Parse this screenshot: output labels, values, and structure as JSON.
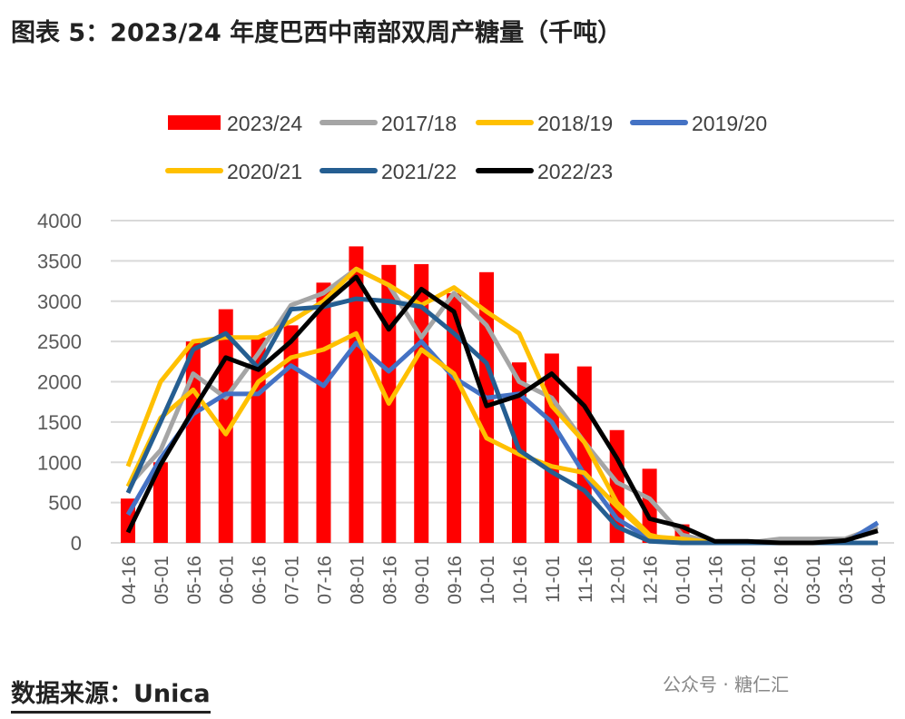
{
  "title": "图表 5：2023/24 年度巴西中南部双周产糖量（千吨）",
  "source": "数据来源：Unica",
  "watermark": "公众号 · 糖仁汇",
  "chart_data": {
    "type": "bar+line",
    "title": "图表 5：2023/24 年度巴西中南部双周产糖量（千吨）",
    "xlabel": "",
    "ylabel": "",
    "ylim": [
      0,
      4000
    ],
    "yticks": [
      0,
      500,
      1000,
      1500,
      2000,
      2500,
      3000,
      3500,
      4000
    ],
    "grid": true,
    "legend": "top",
    "categories": [
      "04-16",
      "05-01",
      "05-16",
      "06-01",
      "06-16",
      "07-01",
      "07-16",
      "08-01",
      "08-16",
      "09-01",
      "09-16",
      "10-01",
      "10-16",
      "11-01",
      "11-16",
      "12-01",
      "12-16",
      "01-01",
      "01-16",
      "02-01",
      "02-16",
      "03-01",
      "03-16",
      "04-01"
    ],
    "series": [
      {
        "name": "2023/24",
        "type": "bar",
        "color": "#ff0000",
        "values": [
          550,
          1000,
          2500,
          2900,
          2550,
          2700,
          3230,
          3680,
          3450,
          3460,
          3100,
          3360,
          2240,
          2350,
          2190,
          1400,
          920,
          230,
          null,
          null,
          null,
          null,
          null,
          null
        ]
      },
      {
        "name": "2017/18",
        "type": "line",
        "color": "#a5a5a5",
        "values": [
          700,
          1150,
          2100,
          1800,
          2350,
          2950,
          3100,
          3400,
          3200,
          2550,
          3100,
          2700,
          2000,
          1800,
          1250,
          750,
          550,
          100,
          0,
          0,
          50,
          50,
          50,
          200
        ]
      },
      {
        "name": "2018/19",
        "type": "line",
        "color": "#ffc000",
        "values": [
          950,
          2000,
          2500,
          2550,
          2550,
          2750,
          3000,
          3400,
          3200,
          2950,
          3170,
          2870,
          2600,
          1700,
          1250,
          500,
          100,
          0,
          0,
          0,
          0,
          0,
          0,
          0
        ]
      },
      {
        "name": "2019/20",
        "type": "line",
        "color": "#4472c4",
        "values": [
          350,
          1050,
          1600,
          1850,
          1850,
          2200,
          1950,
          2480,
          2130,
          2500,
          2050,
          1800,
          1850,
          1500,
          850,
          300,
          50,
          0,
          0,
          0,
          0,
          0,
          0,
          250
        ]
      },
      {
        "name": "2020/21",
        "type": "line",
        "color": "#ffc000",
        "values": [
          700,
          1550,
          1900,
          1350,
          2000,
          2300,
          2400,
          2600,
          1730,
          2400,
          2100,
          1300,
          1100,
          950,
          870,
          450,
          80,
          50,
          0,
          0,
          0,
          0,
          0,
          0
        ]
      },
      {
        "name": "2021/22",
        "type": "line",
        "color": "#255e91",
        "values": [
          620,
          1500,
          2400,
          2600,
          2170,
          2900,
          2930,
          3030,
          3000,
          2930,
          2600,
          2230,
          1150,
          880,
          650,
          200,
          20,
          0,
          0,
          0,
          0,
          0,
          0,
          0
        ]
      },
      {
        "name": "2022/23",
        "type": "line",
        "color": "#000000",
        "values": [
          130,
          970,
          1650,
          2300,
          2150,
          2500,
          2950,
          3300,
          2650,
          3150,
          2870,
          1700,
          1830,
          2100,
          1700,
          1050,
          300,
          200,
          20,
          20,
          0,
          0,
          30,
          150
        ]
      }
    ]
  }
}
